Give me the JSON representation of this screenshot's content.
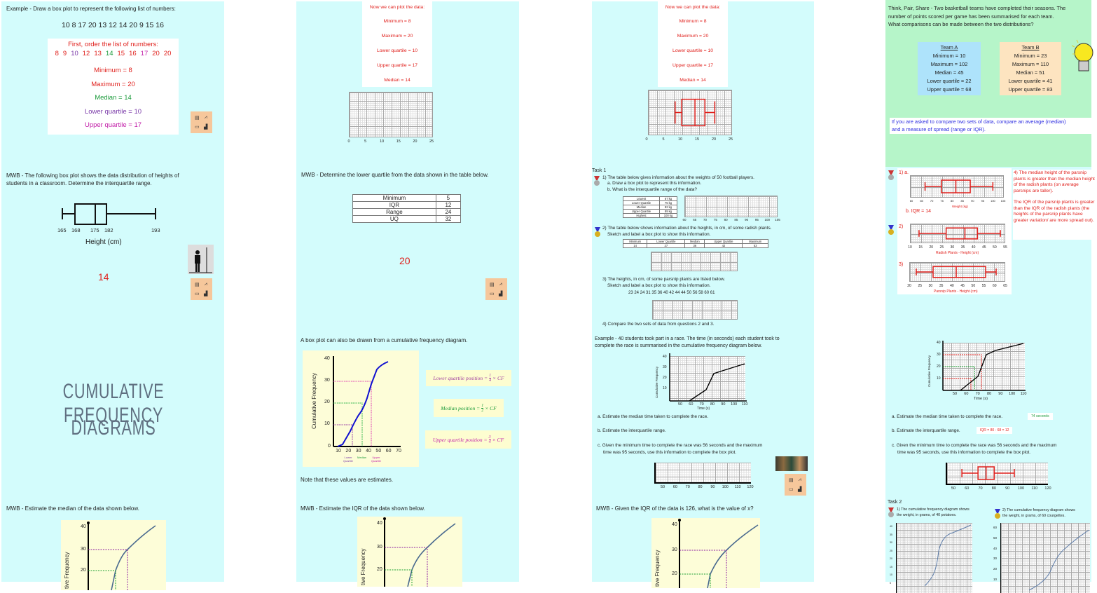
{
  "colors": {
    "background": "#d3fcfc",
    "green_slide": "#b6f5c9",
    "red": "#e0201c",
    "green": "#1a9a3a",
    "purple": "#7a3aa8",
    "magenta": "#c21ea8",
    "team_a": "#aee3fb",
    "team_b": "#fde4c0",
    "icon_box": "#f6c79b"
  },
  "a1": {
    "title": "Example - Draw a box plot to represent the following list of numbers:",
    "numbers": "10   8   17   20   13   12   14   20   9   15   16",
    "order_title": "First, order the list of numbers:",
    "ordered": [
      {
        "v": "8",
        "c": "red"
      },
      {
        "v": "9",
        "c": "red"
      },
      {
        "v": "10",
        "c": "pur"
      },
      {
        "v": "12",
        "c": "red"
      },
      {
        "v": "13",
        "c": "red"
      },
      {
        "v": "14",
        "c": "grn"
      },
      {
        "v": "15",
        "c": "red"
      },
      {
        "v": "16",
        "c": "red"
      },
      {
        "v": "17",
        "c": "mag"
      },
      {
        "v": "20",
        "c": "red"
      },
      {
        "v": "20",
        "c": "red"
      }
    ],
    "min": "Minimum = 8",
    "max": "Maximum = 20",
    "median": "Median = 14",
    "lq": "Lower quartile = 10",
    "uq": "Upper quartile = 17"
  },
  "a2": {
    "title1": "MWB - The following box plot shows the data distribution of heights of",
    "title2": "students in a classroom. Determine the interquartile range.",
    "labels": [
      "165",
      "168",
      "175",
      "182",
      "193"
    ],
    "axis_label": "Height (cm)",
    "answer": "14"
  },
  "a3": {
    "line1": "CUMULATIVE FREQUENCY",
    "line2": "DIAGRAMS"
  },
  "a4": {
    "title": "MWB - Estimate the median of the data shown below.",
    "yticks": [
      "40",
      "30",
      "20"
    ],
    "ylabel": "tive Frequency"
  },
  "b1": {
    "heading": "Now we can plot the data:",
    "min": "Minimum = 8",
    "max": "Maximum = 20",
    "lq": "Lower quartile = 10",
    "uq": "Upper quartile = 17",
    "median": "Median = 14",
    "ticks": [
      "0",
      "5",
      "10",
      "15",
      "20",
      "25"
    ]
  },
  "b2": {
    "title": "MWB - Determine the lower quartile from the data shown in the table below.",
    "rows": [
      [
        "Minimum",
        "5"
      ],
      [
        "IQR",
        "12"
      ],
      [
        "Range",
        "24"
      ],
      [
        "UQ",
        "32"
      ]
    ],
    "answer": "20"
  },
  "b3": {
    "title": "A box plot can also be drawn from a cumulative frequency diagram.",
    "ylabel": "Cumulative Frequency",
    "yticks": [
      "40",
      "30",
      "20",
      "10",
      "0"
    ],
    "xticks": [
      "10",
      "20",
      "30",
      "40",
      "50",
      "60",
      "70"
    ],
    "lq_label": "Lower Quartile",
    "median_label": "Median",
    "uq_label": "Upper Quartile",
    "f_lq": "Lower quartile position =",
    "f_lq_num": "1",
    "f_lq_den": "4",
    "f_med": "Median position =",
    "f_med_num": "1",
    "f_med_den": "2",
    "f_uq": "Upper quartile position =",
    "f_uq_num": "3",
    "f_uq_den": "4",
    "f_tail": "× CF",
    "note": "Note that these values are estimates."
  },
  "b4": {
    "title": "MWB - Estimate the IQR of the data shown below.",
    "yticks": [
      "40",
      "30",
      "20"
    ],
    "ylabel": "tive Frequency"
  },
  "c1": {
    "heading": "Now we can plot the data:",
    "min": "Minimum = 8",
    "max": "Maximum = 20",
    "lq": "Lower quartile = 10",
    "uq": "Upper quartile = 17",
    "median": "Median = 14",
    "ticks": [
      "0",
      "5",
      "10",
      "15",
      "20",
      "25"
    ],
    "box": {
      "min": 8,
      "lq": 10,
      "median": 14,
      "uq": 17,
      "max": 20,
      "axis": [
        0,
        25
      ]
    }
  },
  "c2": {
    "title": "Task 1",
    "q1": "1) The table below gives information about the weights of 50 football players.",
    "q1a": "a.  Draw a box plot to represent this information.",
    "q1b": "b.  What is the interquartile range of the data?",
    "t1": [
      [
        "Lowest",
        "67 kg"
      ],
      [
        "Lower Quartile",
        "75 kg"
      ],
      [
        "Median",
        "82 kg"
      ],
      [
        "Upper Quartile",
        "89 kg"
      ],
      [
        "Highest",
        "100 kg"
      ]
    ],
    "ticks1": [
      "60",
      "65",
      "70",
      "75",
      "80",
      "85",
      "90",
      "95",
      "100",
      "105"
    ],
    "q2": "2) The table below shows information about the heights, in cm, of some radish plants.",
    "q2b": "Sketch and label a box plot to show this information.",
    "t2h": [
      "Minimum",
      "Lower Quartile",
      "Median",
      "Upper Quartile",
      "Maximum"
    ],
    "t2v": [
      "14",
      "27",
      "36",
      "42",
      "53"
    ],
    "q3": "3) The heights, in cm, of some parsnip plants are listed below.",
    "q3b": "Sketch and label a box plot to show this information.",
    "q3n": "23   24   24   31   35   36   40   42   44   44   50   56   58   60   61",
    "q4": "4) Compare the two sets of data from questions 2 and 3."
  },
  "c3": {
    "title1": "Example - 40 students took part in a race. The time (in seconds) each student took to",
    "title2": "complete the race is summarised in the cumulative frequency diagram below.",
    "ylabel": "Cumulative Frequency",
    "yticks": [
      "40",
      "30",
      "20",
      "10"
    ],
    "xticks": [
      "50",
      "60",
      "70",
      "80",
      "90",
      "100",
      "110"
    ],
    "xlabel": "Time (s)",
    "qa": "a. Estimate the median time taken to complete the race.",
    "qb": "b. Estimate the interquartile range.",
    "qc1": "c. Given the minimum time to complete the race was 56 seconds and the maximum",
    "qc2": "time was 95 seconds, use this information to complete the box plot.",
    "bticks": [
      "50",
      "60",
      "70",
      "80",
      "90",
      "100",
      "110",
      "120"
    ]
  },
  "c4": {
    "title": "MWB - Given the IQR of the data is 126, what is the value of x?",
    "yticks": [
      "40",
      "30",
      "20"
    ],
    "ylabel": "tive Frequency"
  },
  "d1": {
    "title1": "Think, Pair, Share - Two basketball teams have completed their seasons. The",
    "title2": "number of points scored per game has been summarised for each team.",
    "title3": "What comparisons can be made between the two distributions?",
    "team_a": {
      "name": "Team A",
      "lines": [
        "Minimum = 10",
        "Maximum = 102",
        "Median = 45",
        "Lower quartile = 22",
        "Upper quartile = 68"
      ]
    },
    "team_b": {
      "name": "Team B",
      "lines": [
        "Minimum = 23",
        "Maximum = 110",
        "Median = 51",
        "Lower quartile = 41",
        "Upper quartile = 83"
      ]
    },
    "tip1": "If you are asked to compare two sets of data, compare an average (median)",
    "tip2": "and a measure of spread (range or IQR)."
  },
  "d2": {
    "l1": "1) a.",
    "box1": {
      "min": 67,
      "lq": 75,
      "median": 82,
      "uq": 89,
      "max": 100,
      "axis": [
        60,
        105
      ]
    },
    "ticks1": [
      "60",
      "65",
      "70",
      "75",
      "80",
      "85",
      "90",
      "95",
      "100",
      "105"
    ],
    "axis1": "Weight (kg)",
    "iqr": "b. IQR = 14",
    "l2": "2)",
    "box2": {
      "min": 14,
      "lq": 27,
      "median": 36,
      "uq": 42,
      "max": 53,
      "axis": [
        10,
        55
      ]
    },
    "ticks2": [
      "10",
      "15",
      "20",
      "25",
      "30",
      "35",
      "40",
      "45",
      "50",
      "55"
    ],
    "axis2": "Radish Plants - Height (cm)",
    "l3": "3)",
    "box3": {
      "min": 23,
      "lq": 31,
      "median": 42,
      "uq": 56,
      "max": 61,
      "axis": [
        20,
        65
      ]
    },
    "ticks3": [
      "20",
      "25",
      "30",
      "35",
      "40",
      "45",
      "50",
      "55",
      "60",
      "65"
    ],
    "axis3": "Parsnip Plants - Height (cm)",
    "ans1": "4) The median height of the parsnip plants is greater than the median height of the radish plants (on average parsnips are taller).",
    "ans2": "The IQR of the parsnip plants is greater than the IQR of the radish plants (the heights of the parsnip plants have greater variation/ are more spread out)."
  },
  "d3": {
    "ylabel": "Cumulative Frequency",
    "yticks": [
      "40",
      "30",
      "20",
      "10"
    ],
    "xticks": [
      "50",
      "60",
      "70",
      "80",
      "90",
      "100",
      "110"
    ],
    "xlabel": "Time (s)",
    "qa": "a. Estimate the median time taken to complete the race.",
    "ans_a": "74 seconds",
    "qb": "b. Estimate the interquartile range.",
    "ans_b": "IQR = 80 - 68 = 12",
    "qc1": "c. Given the minimum time to complete the race was 56 seconds and the maximum",
    "qc2": "time was 95 seconds, use this information to complete the box plot.",
    "box": {
      "min": 56,
      "lq": 68,
      "median": 74,
      "uq": 80,
      "max": 95,
      "axis": [
        45,
        120
      ]
    },
    "bticks": [
      "50",
      "60",
      "70",
      "80",
      "90",
      "100",
      "110",
      "120"
    ]
  },
  "d4": {
    "title": "Task 2",
    "q1a": "1) The cumulative frequency diagram shows",
    "q1b": "the weight, in grams, of 40 potatoes.",
    "q2a": "2) The cumulative frequency diagram shows",
    "q2b": "the weight, in grams, of 60 courgettes.",
    "yt1": [
      "40",
      "35",
      "30",
      "25",
      "20",
      "15",
      "10",
      "5"
    ],
    "yt2": [
      "60",
      "50",
      "40",
      "30",
      "20",
      "10"
    ]
  }
}
